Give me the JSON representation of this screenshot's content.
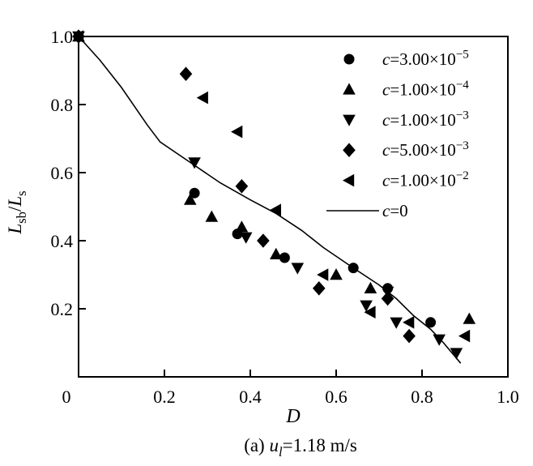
{
  "figure": {
    "background": "#ffffff",
    "ink_color": "#000000"
  },
  "chart_data": {
    "type": "scatter",
    "title": "",
    "xlabel": "D",
    "ylabel": "Lsb/Ls",
    "xlabel_rich": [
      {
        "t": "D",
        "i": true
      }
    ],
    "ylabel_rich": [
      {
        "t": "L",
        "i": true
      },
      {
        "t": "sb",
        "sub": true
      },
      {
        "t": "/"
      },
      {
        "t": "L",
        "i": true
      },
      {
        "t": "s",
        "sub": true
      }
    ],
    "caption": "(a) ul=1.18 m/s",
    "caption_rich": [
      {
        "t": "(a) "
      },
      {
        "t": "u",
        "i": true
      },
      {
        "t": "l",
        "i": true,
        "sub": true
      },
      {
        "t": "=1.18 m/s"
      }
    ],
    "xlim": [
      0,
      1.0
    ],
    "ylim": [
      0,
      1.0
    ],
    "grid": false,
    "legend_position": "upper-right-inside",
    "xticks": {
      "values": [
        0,
        0.2,
        0.4,
        0.6,
        0.8,
        1.0
      ],
      "labels": [
        "0",
        "0.2",
        "0.4",
        "0.6",
        "0.8",
        "1.0"
      ]
    },
    "yticks": {
      "values": [
        0.2,
        0.4,
        0.6,
        0.8,
        1.0
      ],
      "labels": [
        "0.2",
        "0.4",
        "0.6",
        "0.8",
        "1.0"
      ]
    },
    "series": [
      {
        "name": "c=3.00e-5",
        "marker": "circle",
        "label": "c=3.00×10−5",
        "label_rich": [
          {
            "t": "c",
            "i": true
          },
          {
            "t": "=3.00×10"
          },
          {
            "t": "−5",
            "sup": true
          }
        ],
        "points": [
          [
            0,
            1.0
          ],
          [
            0.27,
            0.54
          ],
          [
            0.37,
            0.42
          ],
          [
            0.48,
            0.35
          ],
          [
            0.64,
            0.32
          ],
          [
            0.72,
            0.26
          ],
          [
            0.82,
            0.16
          ]
        ]
      },
      {
        "name": "c=1.00e-4",
        "marker": "triangle-up",
        "label": "c=1.00×10−4",
        "label_rich": [
          {
            "t": "c",
            "i": true
          },
          {
            "t": "=1.00×10"
          },
          {
            "t": "−4",
            "sup": true
          }
        ],
        "points": [
          [
            0,
            1.0
          ],
          [
            0.26,
            0.52
          ],
          [
            0.31,
            0.47
          ],
          [
            0.38,
            0.44
          ],
          [
            0.46,
            0.36
          ],
          [
            0.6,
            0.3
          ],
          [
            0.68,
            0.26
          ],
          [
            0.91,
            0.17
          ]
        ]
      },
      {
        "name": "c=1.00e-3",
        "marker": "triangle-down",
        "label": "c=1.00×10−3",
        "label_rich": [
          {
            "t": "c",
            "i": true
          },
          {
            "t": "=1.00×10"
          },
          {
            "t": "−3",
            "sup": true
          }
        ],
        "points": [
          [
            0,
            1.0
          ],
          [
            0.27,
            0.63
          ],
          [
            0.39,
            0.41
          ],
          [
            0.51,
            0.32
          ],
          [
            0.67,
            0.21
          ],
          [
            0.72,
            0.25
          ],
          [
            0.74,
            0.16
          ],
          [
            0.84,
            0.11
          ],
          [
            0.88,
            0.07
          ]
        ]
      },
      {
        "name": "c=5.00e-3",
        "marker": "diamond",
        "label": "c=5.00×10−3",
        "label_rich": [
          {
            "t": "c",
            "i": true
          },
          {
            "t": "=5.00×10"
          },
          {
            "t": "−3",
            "sup": true
          }
        ],
        "points": [
          [
            0,
            1.0
          ],
          [
            0.25,
            0.89
          ],
          [
            0.38,
            0.56
          ],
          [
            0.43,
            0.4
          ],
          [
            0.56,
            0.26
          ],
          [
            0.72,
            0.23
          ],
          [
            0.77,
            0.12
          ]
        ]
      },
      {
        "name": "c=1.00e-2",
        "marker": "triangle-left",
        "label": "c=1.00×10−2",
        "label_rich": [
          {
            "t": "c",
            "i": true
          },
          {
            "t": "=1.00×10"
          },
          {
            "t": "−2",
            "sup": true
          }
        ],
        "points": [
          [
            0,
            1.0
          ],
          [
            0.29,
            0.82
          ],
          [
            0.37,
            0.72
          ],
          [
            0.46,
            0.49
          ],
          [
            0.57,
            0.3
          ],
          [
            0.68,
            0.19
          ],
          [
            0.77,
            0.16
          ],
          [
            0.9,
            0.12
          ]
        ]
      }
    ],
    "line_series": {
      "name": "c=0",
      "label": "c=0",
      "label_rich": [
        {
          "t": "c",
          "i": true
        },
        {
          "t": "=0"
        }
      ],
      "points": [
        [
          0,
          1.0
        ],
        [
          0.05,
          0.93
        ],
        [
          0.1,
          0.85
        ],
        [
          0.16,
          0.74
        ],
        [
          0.19,
          0.69
        ],
        [
          0.26,
          0.63
        ],
        [
          0.33,
          0.57
        ],
        [
          0.4,
          0.52
        ],
        [
          0.46,
          0.48
        ],
        [
          0.52,
          0.43
        ],
        [
          0.57,
          0.38
        ],
        [
          0.64,
          0.32
        ],
        [
          0.7,
          0.27
        ],
        [
          0.74,
          0.23
        ],
        [
          0.78,
          0.18
        ],
        [
          0.82,
          0.14
        ],
        [
          0.85,
          0.1
        ],
        [
          0.89,
          0.04
        ]
      ]
    }
  }
}
